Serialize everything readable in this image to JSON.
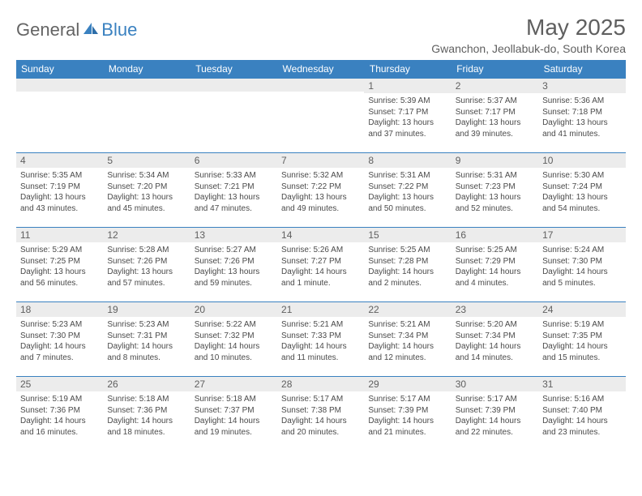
{
  "brand": {
    "general": "General",
    "blue": "Blue"
  },
  "title": "May 2025",
  "location": "Gwanchon, Jeollabuk-do, South Korea",
  "colors": {
    "header_bg": "#3a81c0",
    "header_text": "#ffffff",
    "daynum_bg": "#ececec",
    "text_gray": "#5f5f5f",
    "body_text": "#4a4a4a",
    "border": "#3a81c0"
  },
  "day_headers": [
    "Sunday",
    "Monday",
    "Tuesday",
    "Wednesday",
    "Thursday",
    "Friday",
    "Saturday"
  ],
  "weeks": [
    [
      {
        "n": "",
        "lines": []
      },
      {
        "n": "",
        "lines": []
      },
      {
        "n": "",
        "lines": []
      },
      {
        "n": "",
        "lines": []
      },
      {
        "n": "1",
        "lines": [
          "Sunrise: 5:39 AM",
          "Sunset: 7:17 PM",
          "Daylight: 13 hours",
          "and 37 minutes."
        ]
      },
      {
        "n": "2",
        "lines": [
          "Sunrise: 5:37 AM",
          "Sunset: 7:17 PM",
          "Daylight: 13 hours",
          "and 39 minutes."
        ]
      },
      {
        "n": "3",
        "lines": [
          "Sunrise: 5:36 AM",
          "Sunset: 7:18 PM",
          "Daylight: 13 hours",
          "and 41 minutes."
        ]
      }
    ],
    [
      {
        "n": "4",
        "lines": [
          "Sunrise: 5:35 AM",
          "Sunset: 7:19 PM",
          "Daylight: 13 hours",
          "and 43 minutes."
        ]
      },
      {
        "n": "5",
        "lines": [
          "Sunrise: 5:34 AM",
          "Sunset: 7:20 PM",
          "Daylight: 13 hours",
          "and 45 minutes."
        ]
      },
      {
        "n": "6",
        "lines": [
          "Sunrise: 5:33 AM",
          "Sunset: 7:21 PM",
          "Daylight: 13 hours",
          "and 47 minutes."
        ]
      },
      {
        "n": "7",
        "lines": [
          "Sunrise: 5:32 AM",
          "Sunset: 7:22 PM",
          "Daylight: 13 hours",
          "and 49 minutes."
        ]
      },
      {
        "n": "8",
        "lines": [
          "Sunrise: 5:31 AM",
          "Sunset: 7:22 PM",
          "Daylight: 13 hours",
          "and 50 minutes."
        ]
      },
      {
        "n": "9",
        "lines": [
          "Sunrise: 5:31 AM",
          "Sunset: 7:23 PM",
          "Daylight: 13 hours",
          "and 52 minutes."
        ]
      },
      {
        "n": "10",
        "lines": [
          "Sunrise: 5:30 AM",
          "Sunset: 7:24 PM",
          "Daylight: 13 hours",
          "and 54 minutes."
        ]
      }
    ],
    [
      {
        "n": "11",
        "lines": [
          "Sunrise: 5:29 AM",
          "Sunset: 7:25 PM",
          "Daylight: 13 hours",
          "and 56 minutes."
        ]
      },
      {
        "n": "12",
        "lines": [
          "Sunrise: 5:28 AM",
          "Sunset: 7:26 PM",
          "Daylight: 13 hours",
          "and 57 minutes."
        ]
      },
      {
        "n": "13",
        "lines": [
          "Sunrise: 5:27 AM",
          "Sunset: 7:26 PM",
          "Daylight: 13 hours",
          "and 59 minutes."
        ]
      },
      {
        "n": "14",
        "lines": [
          "Sunrise: 5:26 AM",
          "Sunset: 7:27 PM",
          "Daylight: 14 hours",
          "and 1 minute."
        ]
      },
      {
        "n": "15",
        "lines": [
          "Sunrise: 5:25 AM",
          "Sunset: 7:28 PM",
          "Daylight: 14 hours",
          "and 2 minutes."
        ]
      },
      {
        "n": "16",
        "lines": [
          "Sunrise: 5:25 AM",
          "Sunset: 7:29 PM",
          "Daylight: 14 hours",
          "and 4 minutes."
        ]
      },
      {
        "n": "17",
        "lines": [
          "Sunrise: 5:24 AM",
          "Sunset: 7:30 PM",
          "Daylight: 14 hours",
          "and 5 minutes."
        ]
      }
    ],
    [
      {
        "n": "18",
        "lines": [
          "Sunrise: 5:23 AM",
          "Sunset: 7:30 PM",
          "Daylight: 14 hours",
          "and 7 minutes."
        ]
      },
      {
        "n": "19",
        "lines": [
          "Sunrise: 5:23 AM",
          "Sunset: 7:31 PM",
          "Daylight: 14 hours",
          "and 8 minutes."
        ]
      },
      {
        "n": "20",
        "lines": [
          "Sunrise: 5:22 AM",
          "Sunset: 7:32 PM",
          "Daylight: 14 hours",
          "and 10 minutes."
        ]
      },
      {
        "n": "21",
        "lines": [
          "Sunrise: 5:21 AM",
          "Sunset: 7:33 PM",
          "Daylight: 14 hours",
          "and 11 minutes."
        ]
      },
      {
        "n": "22",
        "lines": [
          "Sunrise: 5:21 AM",
          "Sunset: 7:34 PM",
          "Daylight: 14 hours",
          "and 12 minutes."
        ]
      },
      {
        "n": "23",
        "lines": [
          "Sunrise: 5:20 AM",
          "Sunset: 7:34 PM",
          "Daylight: 14 hours",
          "and 14 minutes."
        ]
      },
      {
        "n": "24",
        "lines": [
          "Sunrise: 5:19 AM",
          "Sunset: 7:35 PM",
          "Daylight: 14 hours",
          "and 15 minutes."
        ]
      }
    ],
    [
      {
        "n": "25",
        "lines": [
          "Sunrise: 5:19 AM",
          "Sunset: 7:36 PM",
          "Daylight: 14 hours",
          "and 16 minutes."
        ]
      },
      {
        "n": "26",
        "lines": [
          "Sunrise: 5:18 AM",
          "Sunset: 7:36 PM",
          "Daylight: 14 hours",
          "and 18 minutes."
        ]
      },
      {
        "n": "27",
        "lines": [
          "Sunrise: 5:18 AM",
          "Sunset: 7:37 PM",
          "Daylight: 14 hours",
          "and 19 minutes."
        ]
      },
      {
        "n": "28",
        "lines": [
          "Sunrise: 5:17 AM",
          "Sunset: 7:38 PM",
          "Daylight: 14 hours",
          "and 20 minutes."
        ]
      },
      {
        "n": "29",
        "lines": [
          "Sunrise: 5:17 AM",
          "Sunset: 7:39 PM",
          "Daylight: 14 hours",
          "and 21 minutes."
        ]
      },
      {
        "n": "30",
        "lines": [
          "Sunrise: 5:17 AM",
          "Sunset: 7:39 PM",
          "Daylight: 14 hours",
          "and 22 minutes."
        ]
      },
      {
        "n": "31",
        "lines": [
          "Sunrise: 5:16 AM",
          "Sunset: 7:40 PM",
          "Daylight: 14 hours",
          "and 23 minutes."
        ]
      }
    ]
  ]
}
